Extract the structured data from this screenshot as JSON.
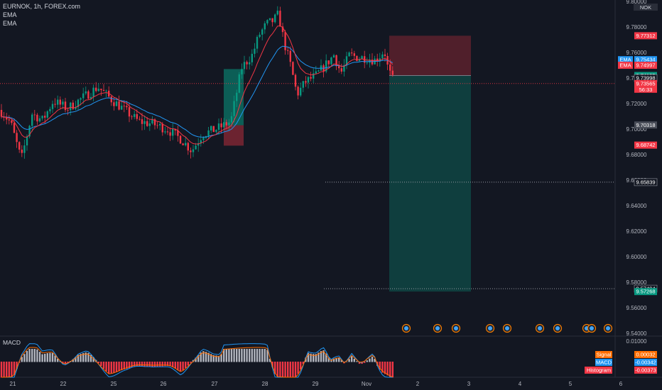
{
  "header": {
    "symbol": "EURNOK, 1h, FOREX.com",
    "indicator1": "EMA",
    "indicator2": "EMA"
  },
  "currency_badge": "NOK",
  "chart_data": [
    {
      "type": "candlestick",
      "title": "EURNOK, 1h, FOREX.com",
      "y_ticks": [
        "9.80000",
        "9.78000",
        "9.76000",
        "9.74000",
        "9.72000",
        "9.70000",
        "9.68000",
        "9.66000",
        "9.64000",
        "9.62000",
        "9.60000",
        "9.58000",
        "9.56000",
        "9.54000"
      ],
      "ylim": [
        9.54,
        9.8
      ],
      "x_ticks": [
        "21",
        "22",
        "25",
        "26",
        "27",
        "28",
        "29",
        "Nov",
        "2",
        "3",
        "4",
        "5",
        "6"
      ],
      "grid": false,
      "series": [
        {
          "name": "EMA",
          "color": "#2196f3"
        },
        {
          "name": "EMA",
          "color": "#f23645"
        }
      ],
      "price_labels": [
        {
          "text": "9.77312",
          "value": 9.77312,
          "color": "#f23645"
        },
        {
          "text": "9.75434",
          "value": 9.75434,
          "color": "#2196f3",
          "prefix": "EMA"
        },
        {
          "text": "9.74997",
          "value": 9.74997,
          "color": "#f23645",
          "prefix": "EMA"
        },
        {
          "text": "9.74195",
          "value": 9.74195,
          "color": "#089981"
        },
        {
          "text": "9.73998",
          "value": 9.73998,
          "color": "#131722"
        },
        {
          "text": "9.73565",
          "value": 9.73565,
          "color": "#f23645",
          "sub": "56:33"
        },
        {
          "text": "9.70318",
          "value": 9.70318,
          "color": "#4a4e59"
        },
        {
          "text": "9.68742",
          "value": 9.68742,
          "color": "#f23645"
        },
        {
          "text": "9.65839",
          "value": 9.65839,
          "color": "#131722"
        },
        {
          "text": "9.57494",
          "value": 9.57494,
          "color": "#131722"
        },
        {
          "text": "9.57268",
          "value": 9.57268,
          "color": "#089981"
        }
      ],
      "position": {
        "side": "short",
        "entry": 9.74195,
        "stop": 9.77312,
        "target": 9.57268
      }
    },
    {
      "type": "bar",
      "title": "MACD",
      "y_ticks": [
        "0.01000"
      ],
      "legend": [
        {
          "name": "Signal",
          "value": "0.00032",
          "color": "#ff6d00"
        },
        {
          "name": "MACD",
          "value": "-0.00342",
          "color": "#2196f3"
        },
        {
          "name": "Histogram",
          "value": "-0.00373",
          "color": "#f23645"
        }
      ]
    }
  ]
}
